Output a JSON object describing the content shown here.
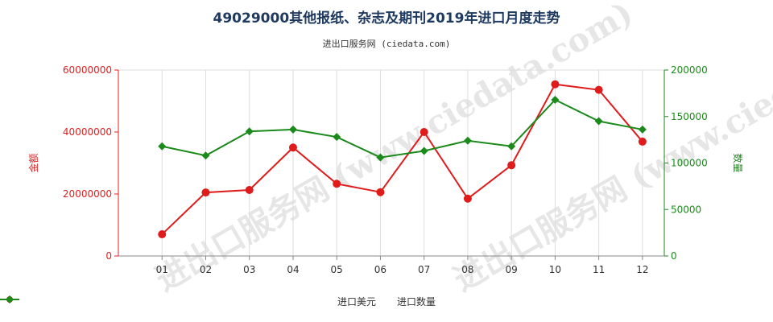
{
  "header": {
    "title": "49029000其他报纸、杂志及期刊2019年进口月度走势",
    "subtitle": "进出口服务网 (ciedata.com)"
  },
  "watermark": {
    "text": "进出口服务网 (www.ciedata.com)"
  },
  "colors": {
    "left_axis": "#e02020",
    "right_axis": "#1a8a1a",
    "grid": "#dddddd"
  },
  "chart_data": {
    "type": "line",
    "categories": [
      "01",
      "02",
      "03",
      "04",
      "05",
      "06",
      "07",
      "08",
      "09",
      "10",
      "11",
      "12"
    ],
    "ylabel_left": "金额",
    "ylabel_right": "数量",
    "ylim_left": [
      0,
      60000000
    ],
    "ylim_right": [
      0,
      200000
    ],
    "yticks_left": [
      "0",
      "20000000",
      "40000000",
      "60000000"
    ],
    "yticks_right": [
      "0",
      "50000",
      "100000",
      "150000",
      "200000"
    ],
    "grid": "vertical",
    "legend_position": "bottom",
    "series": [
      {
        "name": "进口美元",
        "axis": "left",
        "color": "#e01b1b",
        "values": [
          7000000,
          20500000,
          21300000,
          35000000,
          23300000,
          20600000,
          40000000,
          18500000,
          29300000,
          55400000,
          53600000,
          36900000
        ]
      },
      {
        "name": "进口数量",
        "axis": "right",
        "color": "#1a8a1a",
        "values": [
          118000,
          108000,
          134000,
          136000,
          128000,
          106000,
          113000,
          124000,
          118000,
          168000,
          145000,
          136000
        ]
      }
    ]
  }
}
